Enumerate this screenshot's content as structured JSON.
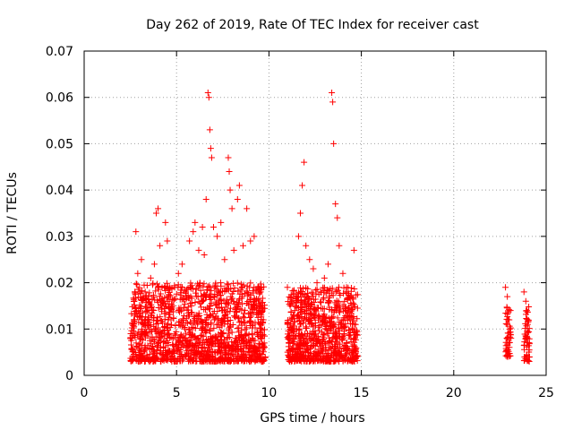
{
  "chart_data": {
    "type": "scatter",
    "title": "Day 262 of 2019, Rate Of TEC Index for receiver cast",
    "xlabel": "GPS time / hours",
    "ylabel": "ROTI / TECUs",
    "xlim": [
      0,
      25
    ],
    "ylim": [
      0,
      0.07
    ],
    "xticks": [
      0,
      5,
      10,
      15,
      20,
      25
    ],
    "xtick_labels": [
      "0",
      "5",
      "10",
      "15",
      "20",
      "25"
    ],
    "yticks": [
      0,
      0.01,
      0.02,
      0.03,
      0.04,
      0.05,
      0.06,
      0.07
    ],
    "ytick_labels": [
      "0",
      "0.01",
      "0.02",
      "0.03",
      "0.04",
      "0.05",
      "0.06",
      "0.07"
    ],
    "grid": true,
    "marker": "plus",
    "marker_color": "#ff0000",
    "series": [
      {
        "name": "ROTI",
        "points": [
          [
            2.6,
            0.008
          ],
          [
            2.7,
            0.012
          ],
          [
            2.8,
            0.031
          ],
          [
            2.9,
            0.022
          ],
          [
            3.0,
            0.018
          ],
          [
            3.1,
            0.025
          ],
          [
            3.2,
            0.011
          ],
          [
            3.3,
            0.009
          ],
          [
            3.5,
            0.014
          ],
          [
            3.6,
            0.021
          ],
          [
            3.8,
            0.024
          ],
          [
            3.9,
            0.035
          ],
          [
            4.0,
            0.036
          ],
          [
            4.1,
            0.028
          ],
          [
            4.3,
            0.016
          ],
          [
            4.4,
            0.033
          ],
          [
            4.5,
            0.029
          ],
          [
            4.7,
            0.012
          ],
          [
            4.9,
            0.019
          ],
          [
            5.1,
            0.022
          ],
          [
            5.3,
            0.024
          ],
          [
            5.5,
            0.018
          ],
          [
            5.7,
            0.029
          ],
          [
            5.9,
            0.031
          ],
          [
            6.0,
            0.033
          ],
          [
            6.2,
            0.027
          ],
          [
            6.4,
            0.032
          ],
          [
            6.5,
            0.026
          ],
          [
            6.6,
            0.038
          ],
          [
            6.7,
            0.061
          ],
          [
            6.75,
            0.06
          ],
          [
            6.8,
            0.053
          ],
          [
            6.85,
            0.049
          ],
          [
            6.9,
            0.047
          ],
          [
            7.0,
            0.032
          ],
          [
            7.2,
            0.03
          ],
          [
            7.4,
            0.033
          ],
          [
            7.6,
            0.025
          ],
          [
            7.8,
            0.047
          ],
          [
            7.85,
            0.044
          ],
          [
            7.9,
            0.04
          ],
          [
            8.0,
            0.036
          ],
          [
            8.1,
            0.027
          ],
          [
            8.3,
            0.038
          ],
          [
            8.4,
            0.041
          ],
          [
            8.6,
            0.028
          ],
          [
            8.8,
            0.036
          ],
          [
            9.0,
            0.029
          ],
          [
            9.2,
            0.03
          ],
          [
            9.4,
            0.019
          ],
          [
            9.5,
            0.014
          ],
          [
            9.7,
            0.012
          ],
          [
            11.0,
            0.019
          ],
          [
            11.2,
            0.017
          ],
          [
            11.4,
            0.014
          ],
          [
            11.6,
            0.03
          ],
          [
            11.7,
            0.035
          ],
          [
            11.8,
            0.041
          ],
          [
            11.9,
            0.046
          ],
          [
            12.0,
            0.028
          ],
          [
            12.2,
            0.025
          ],
          [
            12.4,
            0.023
          ],
          [
            12.6,
            0.02
          ],
          [
            12.8,
            0.018
          ],
          [
            13.0,
            0.021
          ],
          [
            13.2,
            0.024
          ],
          [
            13.4,
            0.061
          ],
          [
            13.45,
            0.059
          ],
          [
            13.5,
            0.05
          ],
          [
            13.6,
            0.037
          ],
          [
            13.7,
            0.034
          ],
          [
            13.8,
            0.028
          ],
          [
            14.0,
            0.022
          ],
          [
            14.2,
            0.019
          ],
          [
            14.4,
            0.017
          ],
          [
            14.6,
            0.027
          ],
          [
            22.8,
            0.019
          ],
          [
            22.9,
            0.017
          ],
          [
            23.0,
            0.012
          ],
          [
            23.1,
            0.008
          ],
          [
            23.8,
            0.018
          ],
          [
            23.9,
            0.016
          ],
          [
            24.0,
            0.011
          ],
          [
            24.1,
            0.004
          ]
        ]
      }
    ],
    "dense_bands": [
      {
        "x_range": [
          2.5,
          9.8
        ],
        "y_range": [
          0.003,
          0.02
        ],
        "count": 1400
      },
      {
        "x_range": [
          11.0,
          14.8
        ],
        "y_range": [
          0.003,
          0.019
        ],
        "count": 800
      },
      {
        "x_range": [
          22.8,
          23.1
        ],
        "y_range": [
          0.004,
          0.015
        ],
        "count": 50
      },
      {
        "x_range": [
          23.8,
          24.1
        ],
        "y_range": [
          0.003,
          0.015
        ],
        "count": 50
      }
    ]
  }
}
